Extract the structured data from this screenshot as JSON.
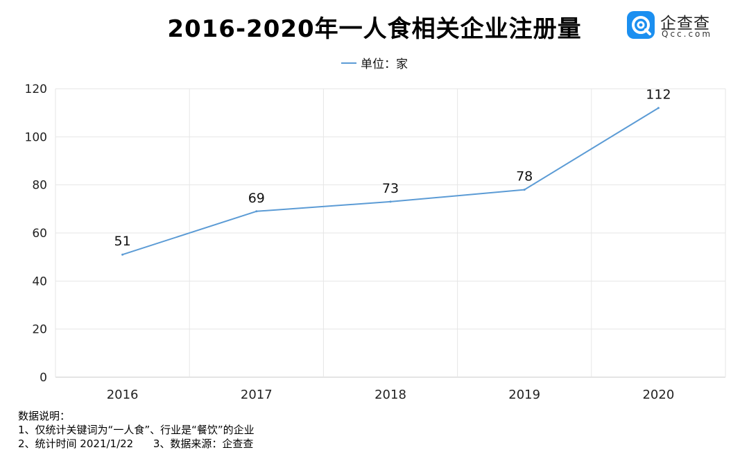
{
  "title": "2016-2020年一人食相关企业注册量",
  "brand": {
    "name": "企查查",
    "sub": "Qcc.com",
    "color": "#1b8ff0"
  },
  "legend": {
    "label": "单位：家"
  },
  "chart_data": {
    "type": "line",
    "title": "2016-2020年一人食相关企业注册量",
    "categories": [
      "2016",
      "2017",
      "2018",
      "2019",
      "2020"
    ],
    "series": [
      {
        "name": "单位：家",
        "values": [
          51,
          69,
          73,
          78,
          112
        ],
        "color": "#5b9bd5"
      }
    ],
    "ylim": [
      0,
      120
    ],
    "yticks": [
      0,
      20,
      40,
      60,
      80,
      100,
      120
    ],
    "xlabel": "",
    "ylabel": "",
    "grid": true,
    "legend_position": "top",
    "data_labels": true
  },
  "notes": [
    "数据说明：",
    "1、仅统计关键词为“一人食”、行业是“餐饮”的企业",
    "2、统计时间 2021/1/22      3、数据来源：企查查"
  ]
}
